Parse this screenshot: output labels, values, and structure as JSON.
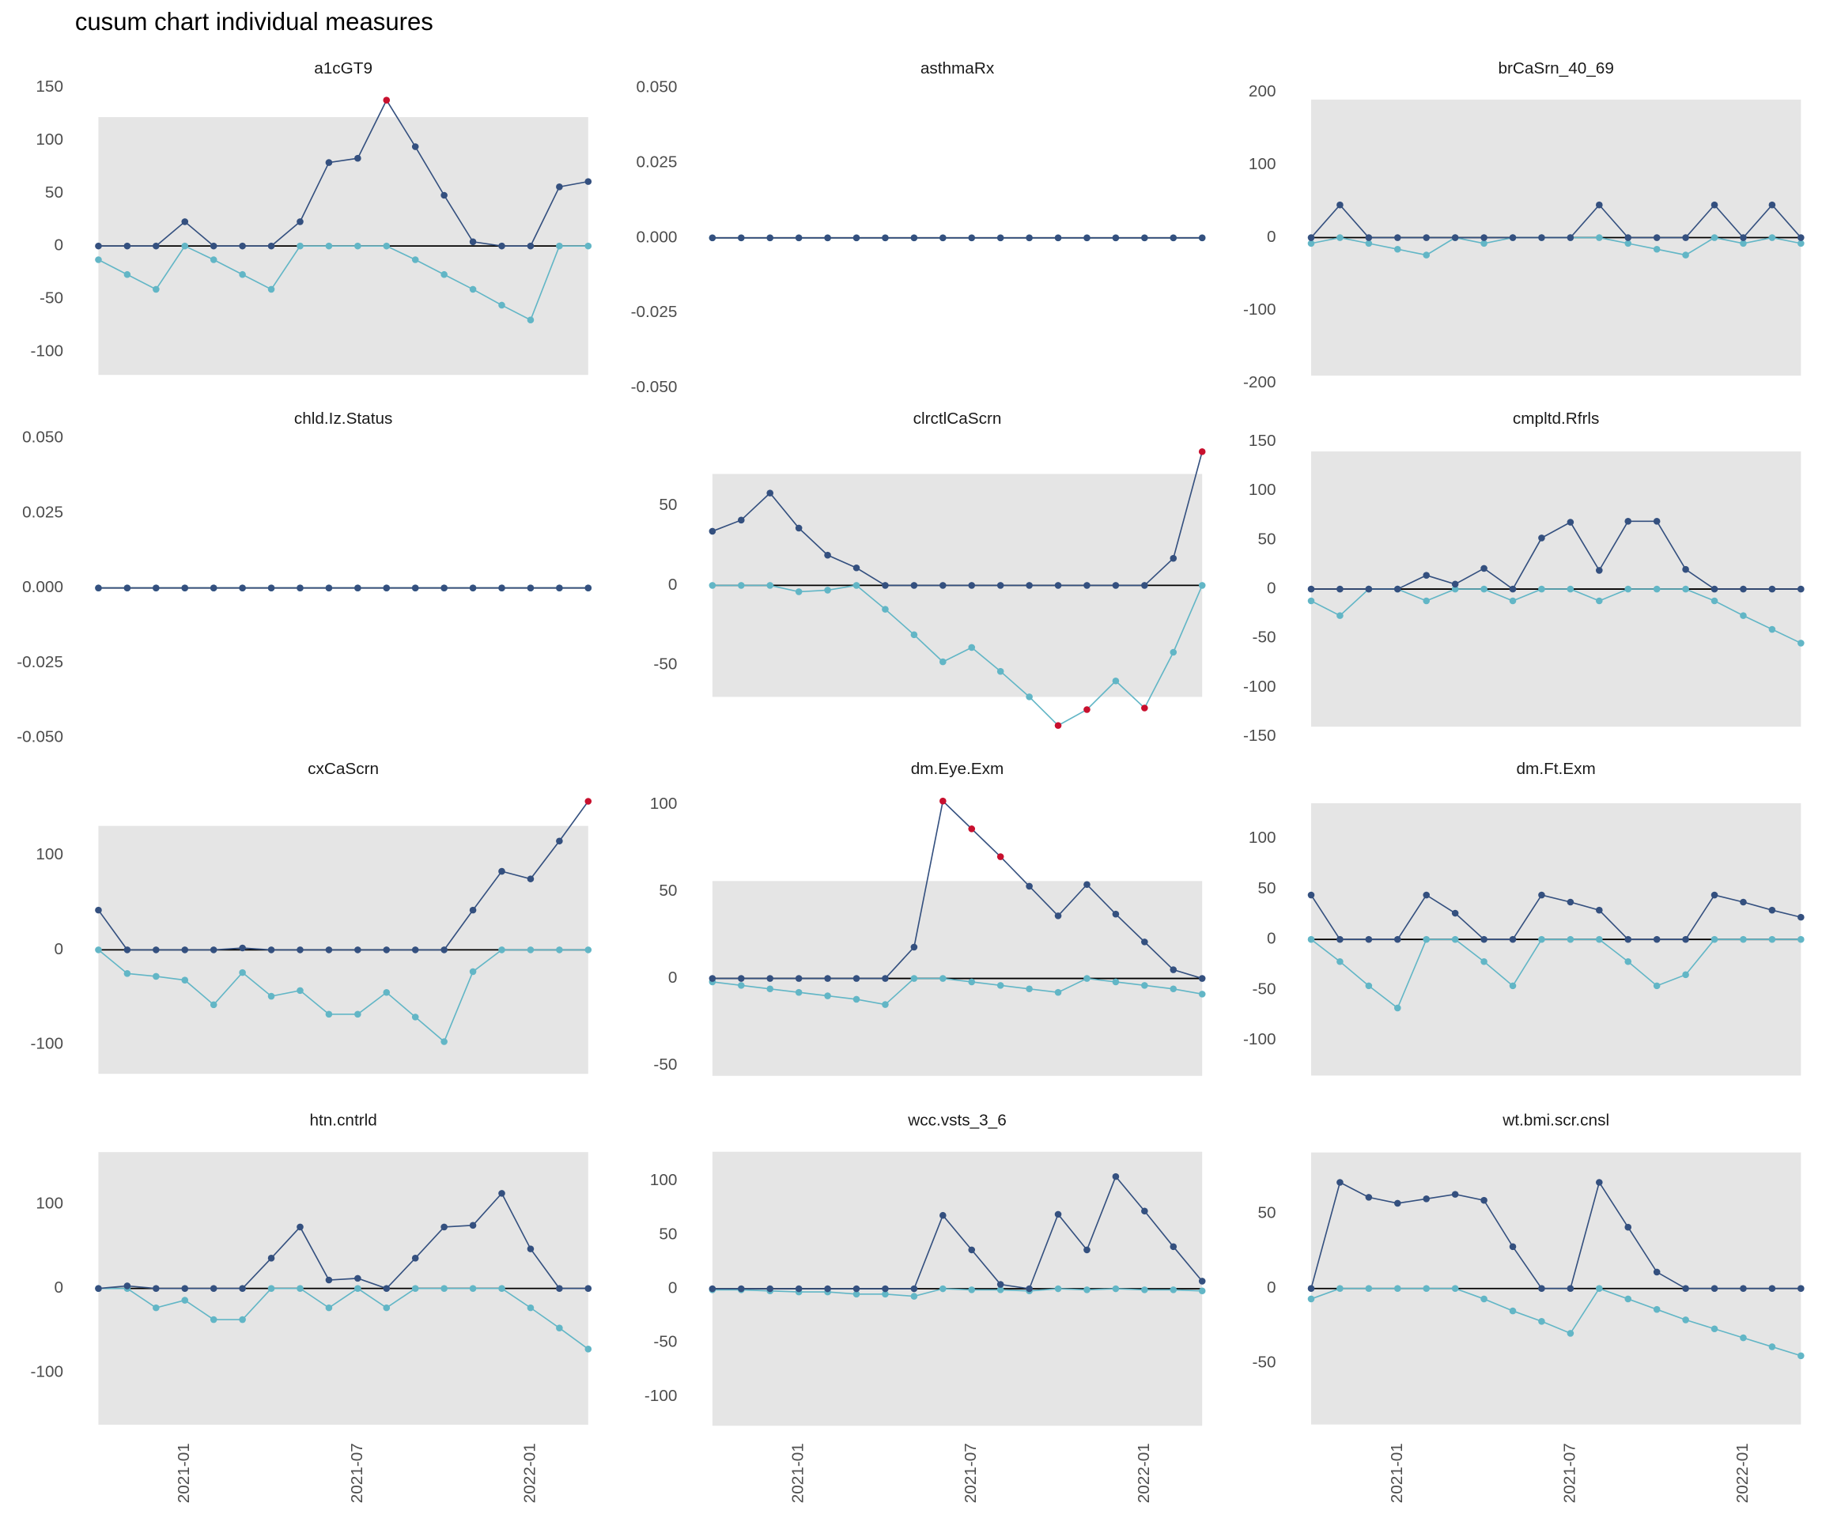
{
  "title": "cusum chart  individual measures",
  "x": [
    "2020-10",
    "2020-11",
    "2020-12",
    "2021-01",
    "2021-02",
    "2021-03",
    "2021-04",
    "2021-05",
    "2021-06",
    "2021-07",
    "2021-08",
    "2021-09",
    "2021-10",
    "2021-11",
    "2021-12",
    "2022-01",
    "2022-02",
    "2022-03"
  ],
  "xticks": [
    "2021-01",
    "2021-07",
    "2022-01"
  ],
  "chart_data": [
    {
      "type": "line",
      "title": "a1cGT9",
      "ylim": [
        -133,
        153
      ],
      "yticks": [
        -100,
        -50,
        0,
        50,
        100,
        150
      ],
      "control_limits": [
        -122,
        122
      ],
      "alarm_color": "#c8102e",
      "series": [
        {
          "color": "#34507f",
          "values": [
            0,
            0,
            0,
            23,
            0,
            0,
            0,
            23,
            79,
            83,
            138,
            94,
            48,
            4,
            0,
            0,
            56,
            61
          ]
        },
        {
          "color": "#62b6c6",
          "values": [
            -13,
            -27,
            -41,
            0,
            -13,
            -27,
            -41,
            0,
            0,
            0,
            0,
            -13,
            -27,
            -41,
            -56,
            -70,
            0,
            0
          ]
        }
      ]
    },
    {
      "type": "line",
      "title": "asthmaRx",
      "ylim": [
        -0.0496,
        0.0512
      ],
      "yticks": [
        {
          "value": -0.05,
          "label": "-0.050"
        },
        -0.025,
        {
          "value": 0,
          "label": "0.000"
        },
        0.025,
        {
          "value": 0.05,
          "label": "0.050"
        }
      ],
      "control_limits": [
        0,
        0
      ],
      "alarm_color": "#c8102e",
      "series": [
        {
          "color": "#34507f",
          "values": [
            0,
            0,
            0,
            0,
            0,
            0,
            0,
            0,
            0,
            0,
            0,
            0,
            0,
            0,
            0,
            0,
            0,
            0
          ]
        },
        {
          "color": "#62b6c6",
          "values": [
            0,
            0,
            0,
            0,
            0,
            0,
            0,
            0,
            0,
            0,
            0,
            0,
            0,
            0,
            0,
            0,
            0,
            0
          ]
        }
      ]
    },
    {
      "type": "line",
      "title": "brCaSrn_40_69",
      "ylim": [
        -205,
        211
      ],
      "yticks": [
        -200,
        -100,
        0,
        100,
        200
      ],
      "control_limits": [
        -190,
        190
      ],
      "alarm_color": "#c8102e",
      "series": [
        {
          "color": "#34507f",
          "values": [
            0,
            45,
            0,
            0,
            0,
            0,
            0,
            0,
            0,
            0,
            45,
            0,
            0,
            0,
            45,
            0,
            45,
            0
          ]
        },
        {
          "color": "#62b6c6",
          "values": [
            -8,
            0,
            -8,
            -16,
            -24,
            0,
            -8,
            0,
            0,
            0,
            0,
            -8,
            -16,
            -24,
            0,
            -8,
            0,
            -8
          ]
        }
      ]
    },
    {
      "type": "line",
      "title": "chld.Iz.Status",
      "ylim": [
        -0.0512,
        0.0508
      ],
      "yticks": [
        {
          "value": -0.05,
          "label": "-0.050"
        },
        -0.025,
        {
          "value": 0,
          "label": "0.000"
        },
        0.025,
        {
          "value": 0.05,
          "label": "0.050"
        }
      ],
      "control_limits": [
        0,
        0
      ],
      "alarm_color": "#c8102e",
      "series": [
        {
          "color": "#34507f",
          "values": [
            0,
            0,
            0,
            0,
            0,
            0,
            0,
            0,
            0,
            0,
            0,
            0,
            0,
            0,
            0,
            0,
            0,
            0
          ]
        },
        {
          "color": "#62b6c6",
          "values": [
            0,
            0,
            0,
            0,
            0,
            0,
            0,
            0,
            0,
            0,
            0,
            0,
            0,
            0,
            0,
            0,
            0,
            0
          ]
        }
      ]
    },
    {
      "type": "line",
      "title": "clrctlCaScrn",
      "ylim": [
        -98,
        94
      ],
      "yticks": [
        -50,
        0,
        50
      ],
      "control_limits": [
        -70,
        70
      ],
      "alarm_color": "#c8102e",
      "series": [
        {
          "color": "#34507f",
          "values": [
            34,
            41,
            58,
            36,
            19,
            11,
            0,
            0,
            0,
            0,
            0,
            0,
            0,
            0,
            0,
            0,
            17,
            84
          ]
        },
        {
          "color": "#62b6c6",
          "values": [
            0,
            0,
            0,
            -4,
            -3,
            0,
            -15,
            -31,
            -48,
            -39,
            -54,
            -70,
            -88,
            -78,
            -60,
            -77,
            -42,
            0
          ]
        }
      ]
    },
    {
      "type": "line",
      "title": "cmpltd.Rfrls",
      "ylim": [
        -155,
        156
      ],
      "yticks": [
        -150,
        -100,
        -50,
        0,
        50,
        100,
        150
      ],
      "control_limits": [
        -140,
        140
      ],
      "alarm_color": "#c8102e",
      "series": [
        {
          "color": "#34507f",
          "values": [
            0,
            0,
            0,
            0,
            14,
            5,
            21,
            0,
            52,
            68,
            19,
            69,
            69,
            20,
            0,
            0,
            0,
            0
          ]
        },
        {
          "color": "#62b6c6",
          "values": [
            -12,
            -27,
            0,
            0,
            -12,
            0,
            0,
            -12,
            0,
            0,
            -12,
            0,
            0,
            0,
            -12,
            -27,
            -41,
            -55
          ]
        }
      ]
    },
    {
      "type": "line",
      "title": "cxCaScrn",
      "ylim": [
        -135,
        172
      ],
      "yticks": [
        -100,
        0,
        100
      ],
      "control_limits": [
        -131,
        131
      ],
      "alarm_color": "#c8102e",
      "series": [
        {
          "color": "#34507f",
          "values": [
            42,
            0,
            0,
            0,
            0,
            2,
            0,
            0,
            0,
            0,
            0,
            0,
            0,
            42,
            83,
            75,
            115,
            157
          ]
        },
        {
          "color": "#62b6c6",
          "values": [
            0,
            -25,
            -28,
            -32,
            -58,
            -24,
            -49,
            -43,
            -68,
            -68,
            -45,
            -71,
            -97,
            -23,
            0,
            0,
            0,
            0
          ]
        }
      ]
    },
    {
      "type": "line",
      "title": "dm.Eye.Exm",
      "ylim": [
        -57,
        110
      ],
      "yticks": [
        -50,
        0,
        50,
        100
      ],
      "control_limits": [
        -56,
        56
      ],
      "alarm_color": "#c8102e",
      "series": [
        {
          "color": "#34507f",
          "values": [
            0,
            0,
            0,
            0,
            0,
            0,
            0,
            18,
            102,
            86,
            70,
            53,
            36,
            54,
            37,
            21,
            5,
            0
          ]
        },
        {
          "color": "#62b6c6",
          "values": [
            -2,
            -4,
            -6,
            -8,
            -10,
            -12,
            -15,
            0,
            0,
            -2,
            -4,
            -6,
            -8,
            0,
            -2,
            -4,
            -6,
            -9
          ]
        }
      ]
    },
    {
      "type": "line",
      "title": "dm.Ft.Exm",
      "ylim": [
        -137,
        151
      ],
      "yticks": [
        -100,
        -50,
        0,
        50,
        100
      ],
      "control_limits": [
        -135,
        135
      ],
      "alarm_color": "#c8102e",
      "series": [
        {
          "color": "#34507f",
          "values": [
            44,
            0,
            0,
            0,
            44,
            26,
            0,
            0,
            44,
            37,
            29,
            0,
            0,
            0,
            44,
            37,
            29,
            22
          ]
        },
        {
          "color": "#62b6c6",
          "values": [
            0,
            -22,
            -46,
            -68,
            0,
            0,
            -22,
            -46,
            0,
            0,
            0,
            -22,
            -46,
            -35,
            0,
            0,
            0,
            0
          ]
        }
      ]
    },
    {
      "type": "line",
      "title": "htn.cntrld",
      "ylim": [
        -167,
        174
      ],
      "yticks": [
        -100,
        0,
        100
      ],
      "control_limits": [
        -162,
        162
      ],
      "alarm_color": "#c8102e",
      "series": [
        {
          "color": "#34507f",
          "values": [
            0,
            3,
            0,
            0,
            0,
            0,
            36,
            73,
            10,
            12,
            0,
            36,
            73,
            75,
            113,
            47,
            0,
            0
          ]
        },
        {
          "color": "#62b6c6",
          "values": [
            0,
            0,
            -23,
            -14,
            -37,
            -37,
            0,
            0,
            -23,
            0,
            -23,
            0,
            0,
            0,
            0,
            -23,
            -47,
            -72
          ]
        }
      ]
    },
    {
      "type": "line",
      "title": "wcc.vsts_3_6",
      "ylim": [
        -130,
        136
      ],
      "yticks": [
        -100,
        -50,
        0,
        50,
        100
      ],
      "control_limits": [
        -127,
        127
      ],
      "alarm_color": "#c8102e",
      "series": [
        {
          "color": "#34507f",
          "values": [
            0,
            0,
            0,
            0,
            0,
            0,
            0,
            0,
            68,
            36,
            4,
            0,
            69,
            36,
            104,
            72,
            39,
            7
          ]
        },
        {
          "color": "#62b6c6",
          "values": [
            -1,
            -1,
            -2,
            -3,
            -3,
            -5,
            -5,
            -7,
            0,
            -1,
            -1,
            -2,
            0,
            -1,
            0,
            -1,
            -1,
            -2
          ]
        }
      ]
    },
    {
      "type": "line",
      "title": "wt.bmi.scr.cnsl",
      "ylim": [
        -94,
        98
      ],
      "yticks": [
        -50,
        0,
        50
      ],
      "control_limits": [
        -91,
        91
      ],
      "alarm_color": "#c8102e",
      "series": [
        {
          "color": "#34507f",
          "values": [
            0,
            71,
            61,
            57,
            60,
            63,
            59,
            28,
            0,
            0,
            71,
            41,
            11,
            0,
            0,
            0,
            0,
            0
          ]
        },
        {
          "color": "#62b6c6",
          "values": [
            -7,
            0,
            0,
            0,
            0,
            0,
            -7,
            -15,
            -22,
            -30,
            0,
            -7,
            -14,
            -21,
            -27,
            -33,
            -39,
            -45
          ]
        }
      ]
    }
  ]
}
